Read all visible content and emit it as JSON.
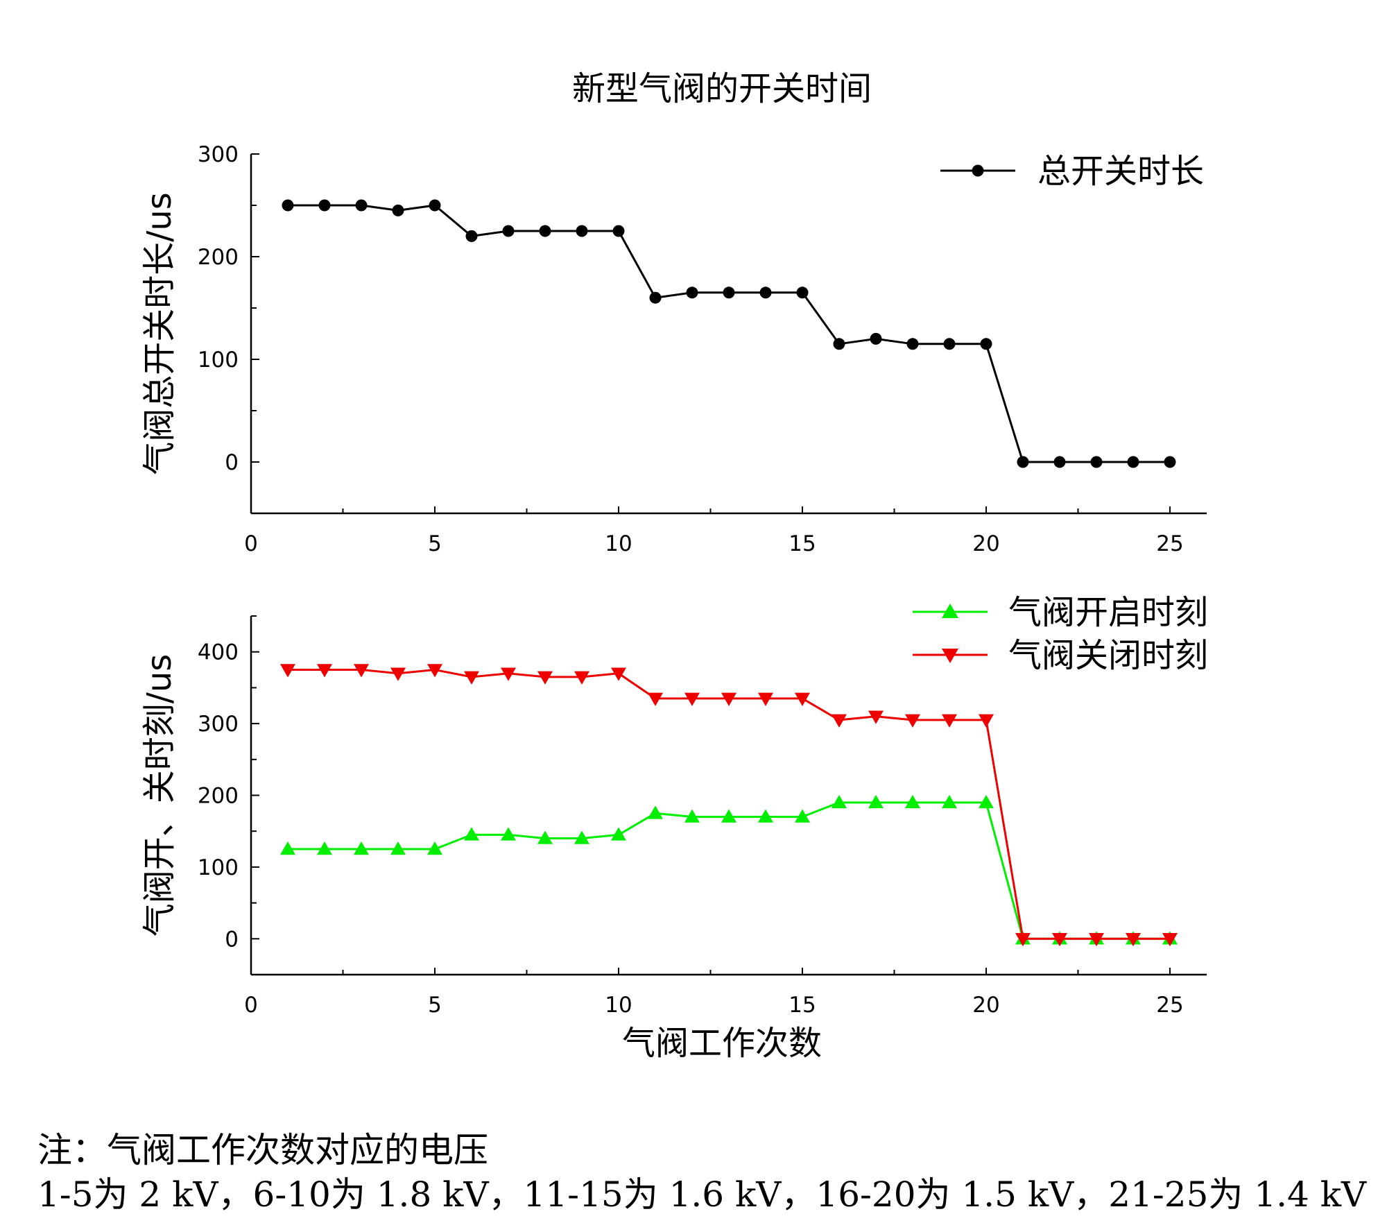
{
  "chart_data": [
    {
      "type": "line",
      "title": "新型气阀的开关时间",
      "xlabel": "",
      "ylabel": "气阀总开关时长/us",
      "xlim": [
        0,
        26
      ],
      "ylim": [
        -50,
        300
      ],
      "xticks": [
        0,
        5,
        10,
        15,
        20,
        25
      ],
      "yticks": [
        0,
        100,
        200,
        300
      ],
      "legend_position": "top-right",
      "x": [
        1,
        2,
        3,
        4,
        5,
        6,
        7,
        8,
        9,
        10,
        11,
        12,
        13,
        14,
        15,
        16,
        17,
        18,
        19,
        20,
        21,
        22,
        23,
        24,
        25
      ],
      "series": [
        {
          "name": "总开关时长",
          "color": "#000000",
          "marker": "circle",
          "values": [
            250,
            250,
            250,
            245,
            250,
            220,
            225,
            225,
            225,
            225,
            160,
            165,
            165,
            165,
            165,
            115,
            120,
            115,
            115,
            115,
            0,
            0,
            0,
            0,
            0
          ]
        }
      ]
    },
    {
      "type": "line",
      "title": "",
      "xlabel": "气阀工作次数",
      "ylabel": "气阀开、关时刻/us",
      "xlim": [
        0,
        26
      ],
      "ylim": [
        -50,
        450
      ],
      "xticks": [
        0,
        5,
        10,
        15,
        20,
        25
      ],
      "yticks": [
        0,
        100,
        200,
        300,
        400
      ],
      "legend_position": "top-right",
      "x": [
        1,
        2,
        3,
        4,
        5,
        6,
        7,
        8,
        9,
        10,
        11,
        12,
        13,
        14,
        15,
        16,
        17,
        18,
        19,
        20,
        21,
        22,
        23,
        24,
        25
      ],
      "series": [
        {
          "name": "气阀开启时刻",
          "color": "#00ee00",
          "marker": "triangle-up",
          "values": [
            125,
            125,
            125,
            125,
            125,
            145,
            145,
            140,
            140,
            145,
            175,
            170,
            170,
            170,
            170,
            190,
            190,
            190,
            190,
            190,
            0,
            0,
            0,
            0,
            0
          ]
        },
        {
          "name": "气阀关闭时刻",
          "color": "#ee0000",
          "marker": "triangle-down",
          "values": [
            375,
            375,
            375,
            370,
            375,
            365,
            370,
            365,
            365,
            370,
            335,
            335,
            335,
            335,
            335,
            305,
            310,
            305,
            305,
            305,
            0,
            0,
            0,
            0,
            0
          ]
        }
      ]
    }
  ],
  "notes": {
    "line1": "注：气阀工作次数对应的电压",
    "line2": "1-5为 2 kV，6-10为 1.8 kV，11-15为 1.6 kV，16-20为 1.5 kV，21-25为 1.4 kV"
  }
}
